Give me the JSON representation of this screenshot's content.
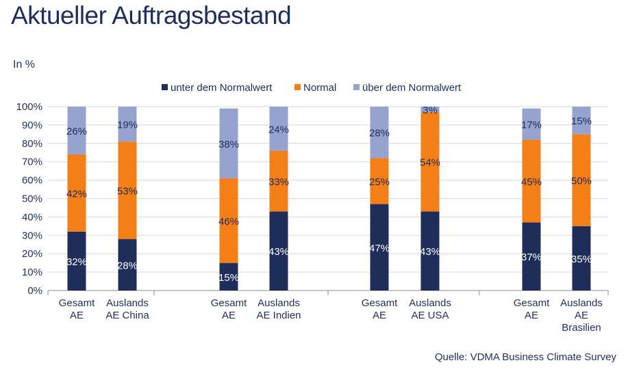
{
  "page": {
    "title": "Aktueller Auftragsbestand",
    "unit_label": "In %",
    "source": "Quelle: VDMA Business Climate Survey"
  },
  "chart_data": {
    "type": "bar",
    "stacked": true,
    "title": "",
    "xlabel": "",
    "ylabel": "In %",
    "ylim": [
      0,
      100
    ],
    "yticks": [
      0,
      10,
      20,
      30,
      40,
      50,
      60,
      70,
      80,
      90,
      100
    ],
    "ytick_labels": [
      "0%",
      "10%",
      "20%",
      "30%",
      "40%",
      "50%",
      "60%",
      "70%",
      "80%",
      "90%",
      "100%"
    ],
    "grid": true,
    "legend_position": "top",
    "groups": [
      {
        "categories": [
          0,
          1
        ]
      },
      {
        "categories": [
          2,
          3
        ]
      },
      {
        "categories": [
          4,
          5
        ]
      },
      {
        "categories": [
          6,
          7
        ]
      }
    ],
    "categories": [
      [
        "Gesamt",
        "AE"
      ],
      [
        "Auslands",
        "AE China"
      ],
      [
        "Gesamt",
        "AE"
      ],
      [
        "Auslands",
        "AE Indien"
      ],
      [
        "Gesamt",
        "AE"
      ],
      [
        "Auslands",
        "AE USA"
      ],
      [
        "Gesamt",
        "AE"
      ],
      [
        "Auslands",
        "AE",
        "Brasilien"
      ]
    ],
    "series": [
      {
        "name": "unter dem Normalwert",
        "color": "#1f2d5a",
        "label_color": "#ffffff",
        "values": [
          32,
          28,
          15,
          43,
          47,
          43,
          37,
          35
        ],
        "labels": [
          "32%",
          "28%",
          "15%",
          "43%",
          "47%",
          "43%",
          "37%",
          "35%"
        ]
      },
      {
        "name": "Normal",
        "color": "#f57f17",
        "label_color": "#1f2d5a",
        "values": [
          42,
          53,
          46,
          33,
          25,
          54,
          45,
          50
        ],
        "labels": [
          "42%",
          "53%",
          "46%",
          "33%",
          "25%",
          "54%",
          "45%",
          "50%"
        ]
      },
      {
        "name": "über dem Normalwert",
        "color": "#97a3cf",
        "label_color": "#1f2d5a",
        "values": [
          26,
          19,
          38,
          24,
          28,
          3,
          17,
          15
        ],
        "labels": [
          "26%",
          "19%",
          "38%",
          "24%",
          "28%",
          "3%",
          "17%",
          "15%"
        ]
      }
    ]
  }
}
